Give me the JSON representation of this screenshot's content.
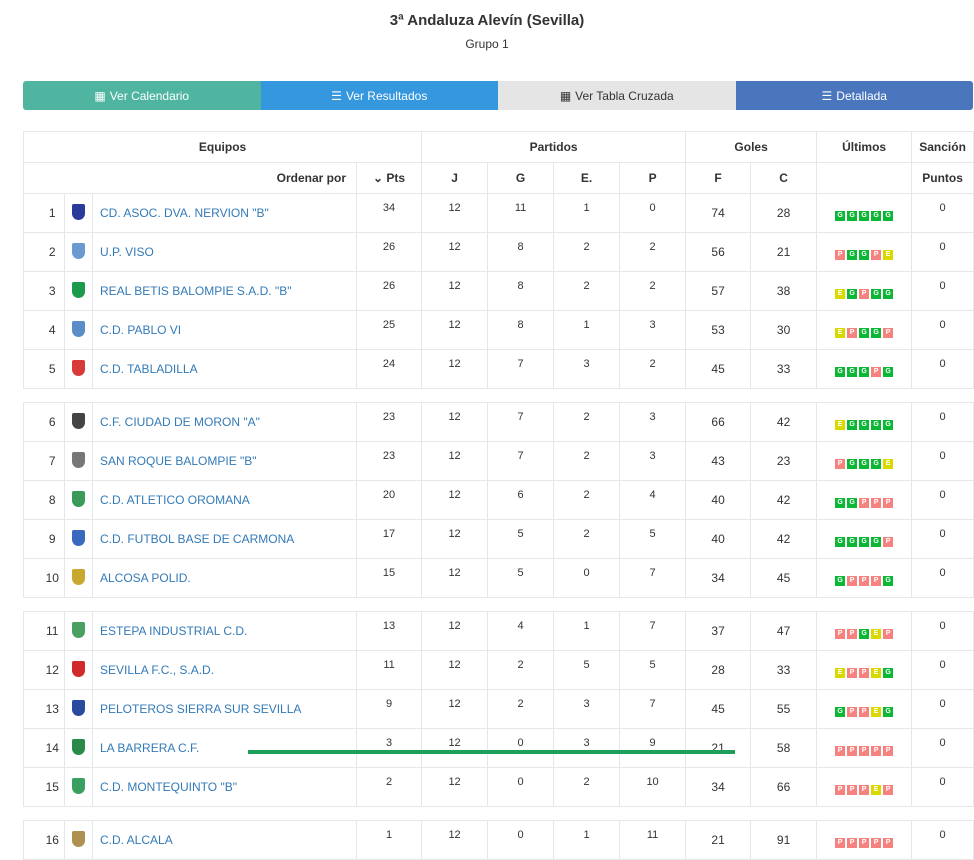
{
  "header": {
    "title": "3ª Andaluza Alevín (Sevilla)",
    "subtitle": "Grupo 1"
  },
  "buttons": [
    {
      "label": "Ver Calendario",
      "icon": "calendar-icon"
    },
    {
      "label": "Ver Resultados",
      "icon": "list-icon"
    },
    {
      "label": "Ver Tabla Cruzada",
      "icon": "calculator-icon"
    },
    {
      "label": "Detallada",
      "icon": "detail-list-icon"
    }
  ],
  "table": {
    "groups": {
      "equipos": "Equipos",
      "partidos": "Partidos",
      "goles": "Goles",
      "ultimos": "Últimos",
      "sancion": "Sanción"
    },
    "cols": {
      "ordenar": "Ordenar por",
      "pts": "Pts",
      "j": "J",
      "g": "G",
      "e": "E.",
      "p": "P",
      "f": "F",
      "c": "C",
      "puntos": "Puntos"
    },
    "colors": {
      "G": "#0bb734",
      "P": "#f6827f",
      "E": "#d9d900"
    },
    "rows": [
      {
        "pos": "1",
        "team": "CD. ASOC. DVA. NERVION \"B\"",
        "pts": "34",
        "j": "12",
        "g": "11",
        "e": "1",
        "p": "0",
        "f": "74",
        "c": "28",
        "last": [
          "G",
          "G",
          "G",
          "G",
          "G"
        ],
        "sancion": "0",
        "crest": "#2a3b9c"
      },
      {
        "pos": "2",
        "team": "U.P. VISO",
        "pts": "26",
        "j": "12",
        "g": "8",
        "e": "2",
        "p": "2",
        "f": "56",
        "c": "21",
        "last": [
          "P",
          "G",
          "G",
          "P",
          "E"
        ],
        "sancion": "0",
        "crest": "#6a9ad0"
      },
      {
        "pos": "3",
        "team": "REAL BETIS BALOMPIE S.A.D. \"B\"",
        "pts": "26",
        "j": "12",
        "g": "8",
        "e": "2",
        "p": "2",
        "f": "57",
        "c": "38",
        "last": [
          "E",
          "G",
          "P",
          "G",
          "G"
        ],
        "sancion": "0",
        "crest": "#1a9a4a"
      },
      {
        "pos": "4",
        "team": "C.D. PABLO VI",
        "pts": "25",
        "j": "12",
        "g": "8",
        "e": "1",
        "p": "3",
        "f": "53",
        "c": "30",
        "last": [
          "E",
          "P",
          "G",
          "G",
          "P"
        ],
        "sancion": "0",
        "crest": "#5b8ec9"
      },
      {
        "pos": "5",
        "team": "C.D. TABLADILLA",
        "pts": "24",
        "j": "12",
        "g": "7",
        "e": "3",
        "p": "2",
        "f": "45",
        "c": "33",
        "last": [
          "G",
          "G",
          "G",
          "P",
          "G"
        ],
        "sancion": "0",
        "crest": "#d83a3a"
      },
      {
        "sep": true
      },
      {
        "pos": "6",
        "team": "C.F. CIUDAD DE MORON \"A\"",
        "pts": "23",
        "j": "12",
        "g": "7",
        "e": "2",
        "p": "3",
        "f": "66",
        "c": "42",
        "last": [
          "E",
          "G",
          "G",
          "G",
          "G"
        ],
        "sancion": "0",
        "crest": "#444"
      },
      {
        "pos": "7",
        "team": "SAN ROQUE BALOMPIE \"B\"",
        "pts": "23",
        "j": "12",
        "g": "7",
        "e": "2",
        "p": "3",
        "f": "43",
        "c": "23",
        "last": [
          "P",
          "G",
          "G",
          "G",
          "E"
        ],
        "sancion": "0",
        "crest": "#777"
      },
      {
        "pos": "8",
        "team": "C.D. ATLETICO OROMANA",
        "pts": "20",
        "j": "12",
        "g": "6",
        "e": "2",
        "p": "4",
        "f": "40",
        "c": "42",
        "last": [
          "G",
          "G",
          "P",
          "P",
          "P"
        ],
        "sancion": "0",
        "crest": "#3a9a5a"
      },
      {
        "pos": "9",
        "team": "C.D. FUTBOL BASE DE CARMONA",
        "pts": "17",
        "j": "12",
        "g": "5",
        "e": "2",
        "p": "5",
        "f": "40",
        "c": "42",
        "last": [
          "G",
          "G",
          "G",
          "G",
          "P"
        ],
        "sancion": "0",
        "crest": "#3a6ac0"
      },
      {
        "pos": "10",
        "team": "ALCOSA POLID.",
        "pts": "15",
        "j": "12",
        "g": "5",
        "e": "0",
        "p": "7",
        "f": "34",
        "c": "45",
        "last": [
          "G",
          "P",
          "P",
          "P",
          "G"
        ],
        "sancion": "0",
        "crest": "#c9a830"
      },
      {
        "sep": true
      },
      {
        "pos": "11",
        "team": "ESTEPA INDUSTRIAL C.D.",
        "pts": "13",
        "j": "12",
        "g": "4",
        "e": "1",
        "p": "7",
        "f": "37",
        "c": "47",
        "last": [
          "P",
          "P",
          "G",
          "E",
          "P"
        ],
        "sancion": "0",
        "crest": "#4aa060"
      },
      {
        "pos": "12",
        "team": "SEVILLA F.C., S.A.D.",
        "pts": "11",
        "j": "12",
        "g": "2",
        "e": "5",
        "p": "5",
        "f": "28",
        "c": "33",
        "last": [
          "E",
          "P",
          "P",
          "E",
          "G"
        ],
        "sancion": "0",
        "crest": "#d02a2a"
      },
      {
        "pos": "13",
        "team": "PELOTEROS SIERRA SUR SEVILLA",
        "pts": "9",
        "j": "12",
        "g": "2",
        "e": "3",
        "p": "7",
        "f": "45",
        "c": "55",
        "last": [
          "G",
          "P",
          "P",
          "E",
          "G"
        ],
        "sancion": "0",
        "crest": "#2a4aa0"
      },
      {
        "pos": "14",
        "team": "LA BARRERA C.F.",
        "pts": "3",
        "j": "12",
        "g": "0",
        "e": "3",
        "p": "9",
        "f": "21",
        "c": "58",
        "last": [
          "P",
          "P",
          "P",
          "P",
          "P"
        ],
        "sancion": "0",
        "crest": "#2a8a4a"
      },
      {
        "pos": "15",
        "team": "C.D. MONTEQUINTO \"B\"",
        "pts": "2",
        "j": "12",
        "g": "0",
        "e": "2",
        "p": "10",
        "f": "34",
        "c": "66",
        "last": [
          "P",
          "P",
          "P",
          "E",
          "P"
        ],
        "sancion": "0",
        "crest": "#3aa060"
      },
      {
        "sep": true
      },
      {
        "pos": "16",
        "team": "C.D. ALCALA",
        "pts": "1",
        "j": "12",
        "g": "0",
        "e": "1",
        "p": "11",
        "f": "21",
        "c": "91",
        "last": [
          "P",
          "P",
          "P",
          "P",
          "P"
        ],
        "sancion": "0",
        "crest": "#b09050"
      }
    ]
  }
}
